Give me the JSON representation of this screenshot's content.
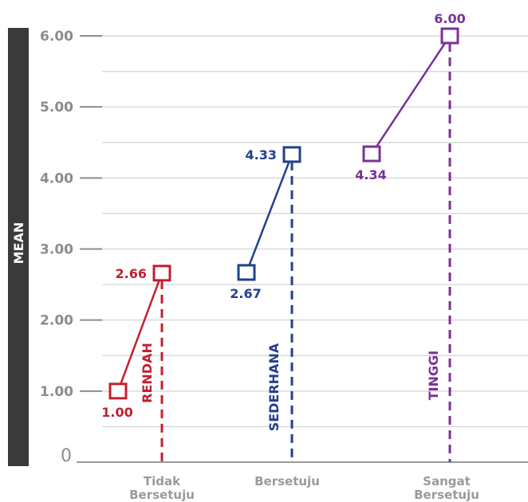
{
  "chart_data": {
    "type": "line",
    "ylabel": "MEAN",
    "ylim": [
      0,
      6
    ],
    "yticks": [
      {
        "value": 6,
        "label": "6.00"
      },
      {
        "value": 5,
        "label": "5.00"
      },
      {
        "value": 4,
        "label": "4.00"
      },
      {
        "value": 3,
        "label": "3.00"
      },
      {
        "value": 2,
        "label": "2.00"
      },
      {
        "value": 1,
        "label": "1.00"
      },
      {
        "value": 0,
        "label": "0"
      }
    ],
    "categories": [
      {
        "line1": "Tidak",
        "line2": "Bersetuju"
      },
      {
        "line1": "Bersetuju",
        "line2": ""
      },
      {
        "line1": "Sangat",
        "line2": "Bersetuju"
      }
    ],
    "series": [
      {
        "name": "RENDAH",
        "color": "#c0202f",
        "from": 1.0,
        "to": 2.66,
        "from_label": "1.00",
        "to_label": "2.66"
      },
      {
        "name": "SEDERHANA",
        "color": "#23408f",
        "from": 2.67,
        "to": 4.33,
        "from_label": "2.67",
        "to_label": "4.33"
      },
      {
        "name": "TINGGI",
        "color": "#7b3195",
        "from": 4.34,
        "to": 6.0,
        "from_label": "4.34",
        "to_label": "6.00"
      }
    ],
    "grid": true,
    "grid_minor": true
  }
}
